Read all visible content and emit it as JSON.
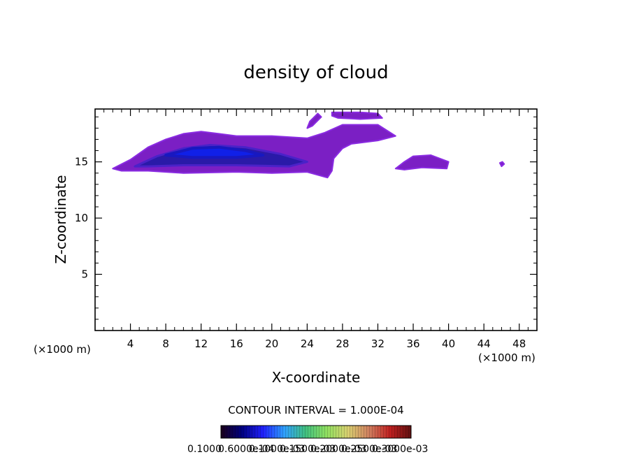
{
  "chart_data": {
    "type": "heatmap",
    "title": "density of cloud",
    "xlabel": "X-coordinate",
    "ylabel": "Z-coordinate",
    "x_unit": "(×1000 m)",
    "x_unit_right": "(×1000 m)",
    "xlim": [
      0,
      50
    ],
    "ylim": [
      0,
      19.7
    ],
    "x_ticks": [
      4,
      8,
      12,
      16,
      20,
      24,
      28,
      32,
      36,
      40,
      44,
      48
    ],
    "y_ticks": [
      5,
      10,
      15
    ],
    "contour_interval_text": "CONTOUR INTERVAL = 1.000E-04",
    "colorbar_labels": [
      "0.1000",
      "0.6000e-04",
      "0.1000e-03",
      "0.1500e-03",
      "0.2000e-03",
      "0.2500e-03",
      "0.3000e-03"
    ],
    "colorbar_colors": [
      "#1a001a",
      "#000080",
      "#2020ff",
      "#2fa0ff",
      "#40c080",
      "#90e060",
      "#d8d070",
      "#d08060",
      "#c02020",
      "#601010"
    ],
    "regions": [
      {
        "name": "main cloud band",
        "outline": [
          [
            2.0,
            14.4
          ],
          [
            4.0,
            15.2
          ],
          [
            6.0,
            16.3
          ],
          [
            8.0,
            17.0
          ],
          [
            10.0,
            17.5
          ],
          [
            12.0,
            17.7
          ],
          [
            14.0,
            17.5
          ],
          [
            16.0,
            17.3
          ],
          [
            20.0,
            17.3
          ],
          [
            24.0,
            17.1
          ],
          [
            26.0,
            17.6
          ],
          [
            28.0,
            18.3
          ],
          [
            32.0,
            18.3
          ],
          [
            34.0,
            17.3
          ],
          [
            32.0,
            16.9
          ],
          [
            29.0,
            16.6
          ],
          [
            28.0,
            16.2
          ],
          [
            27.0,
            15.3
          ],
          [
            26.8,
            14.2
          ],
          [
            26.3,
            13.6
          ],
          [
            24.0,
            14.1
          ],
          [
            20.0,
            14.0
          ],
          [
            16.0,
            14.1
          ],
          [
            10.0,
            14.0
          ],
          [
            6.0,
            14.2
          ],
          [
            3.0,
            14.2
          ]
        ]
      },
      {
        "name": "upper cloud patch",
        "outline": [
          [
            26.8,
            19.4
          ],
          [
            30.0,
            19.4
          ],
          [
            32.0,
            19.3
          ],
          [
            32.5,
            18.9
          ],
          [
            30.0,
            18.8
          ],
          [
            27.5,
            18.9
          ],
          [
            26.8,
            19.1
          ]
        ]
      },
      {
        "name": "small patch near x 25",
        "outline": [
          [
            24.3,
            18.6
          ],
          [
            25.2,
            19.3
          ],
          [
            25.6,
            19.0
          ],
          [
            24.6,
            18.2
          ],
          [
            24.0,
            18.0
          ]
        ]
      },
      {
        "name": "cloud near x 37",
        "outline": [
          [
            34.0,
            14.4
          ],
          [
            35.0,
            15.0
          ],
          [
            36.0,
            15.5
          ],
          [
            38.0,
            15.6
          ],
          [
            40.0,
            15.0
          ],
          [
            39.8,
            14.4
          ],
          [
            37.0,
            14.5
          ],
          [
            35.0,
            14.3
          ]
        ]
      },
      {
        "name": "dot near x 46",
        "outline": [
          [
            45.8,
            14.9
          ],
          [
            46.1,
            15.0
          ],
          [
            46.3,
            14.8
          ],
          [
            46.0,
            14.6
          ]
        ]
      }
    ],
    "core": {
      "name": "dense core",
      "outline": [
        [
          4.5,
          14.6
        ],
        [
          7.0,
          15.5
        ],
        [
          10.0,
          16.2
        ],
        [
          13.0,
          16.5
        ],
        [
          17.0,
          16.3
        ],
        [
          21.0,
          15.7
        ],
        [
          24.0,
          15.0
        ],
        [
          22.0,
          14.6
        ],
        [
          16.0,
          14.7
        ],
        [
          10.0,
          14.7
        ],
        [
          6.0,
          14.6
        ]
      ]
    },
    "core_inner": {
      "name": "brightest core",
      "outline": [
        [
          8.0,
          15.6
        ],
        [
          11.0,
          16.2
        ],
        [
          14.0,
          16.3
        ],
        [
          17.0,
          16.0
        ],
        [
          19.0,
          15.6
        ],
        [
          16.0,
          15.4
        ],
        [
          11.0,
          15.4
        ]
      ]
    }
  }
}
